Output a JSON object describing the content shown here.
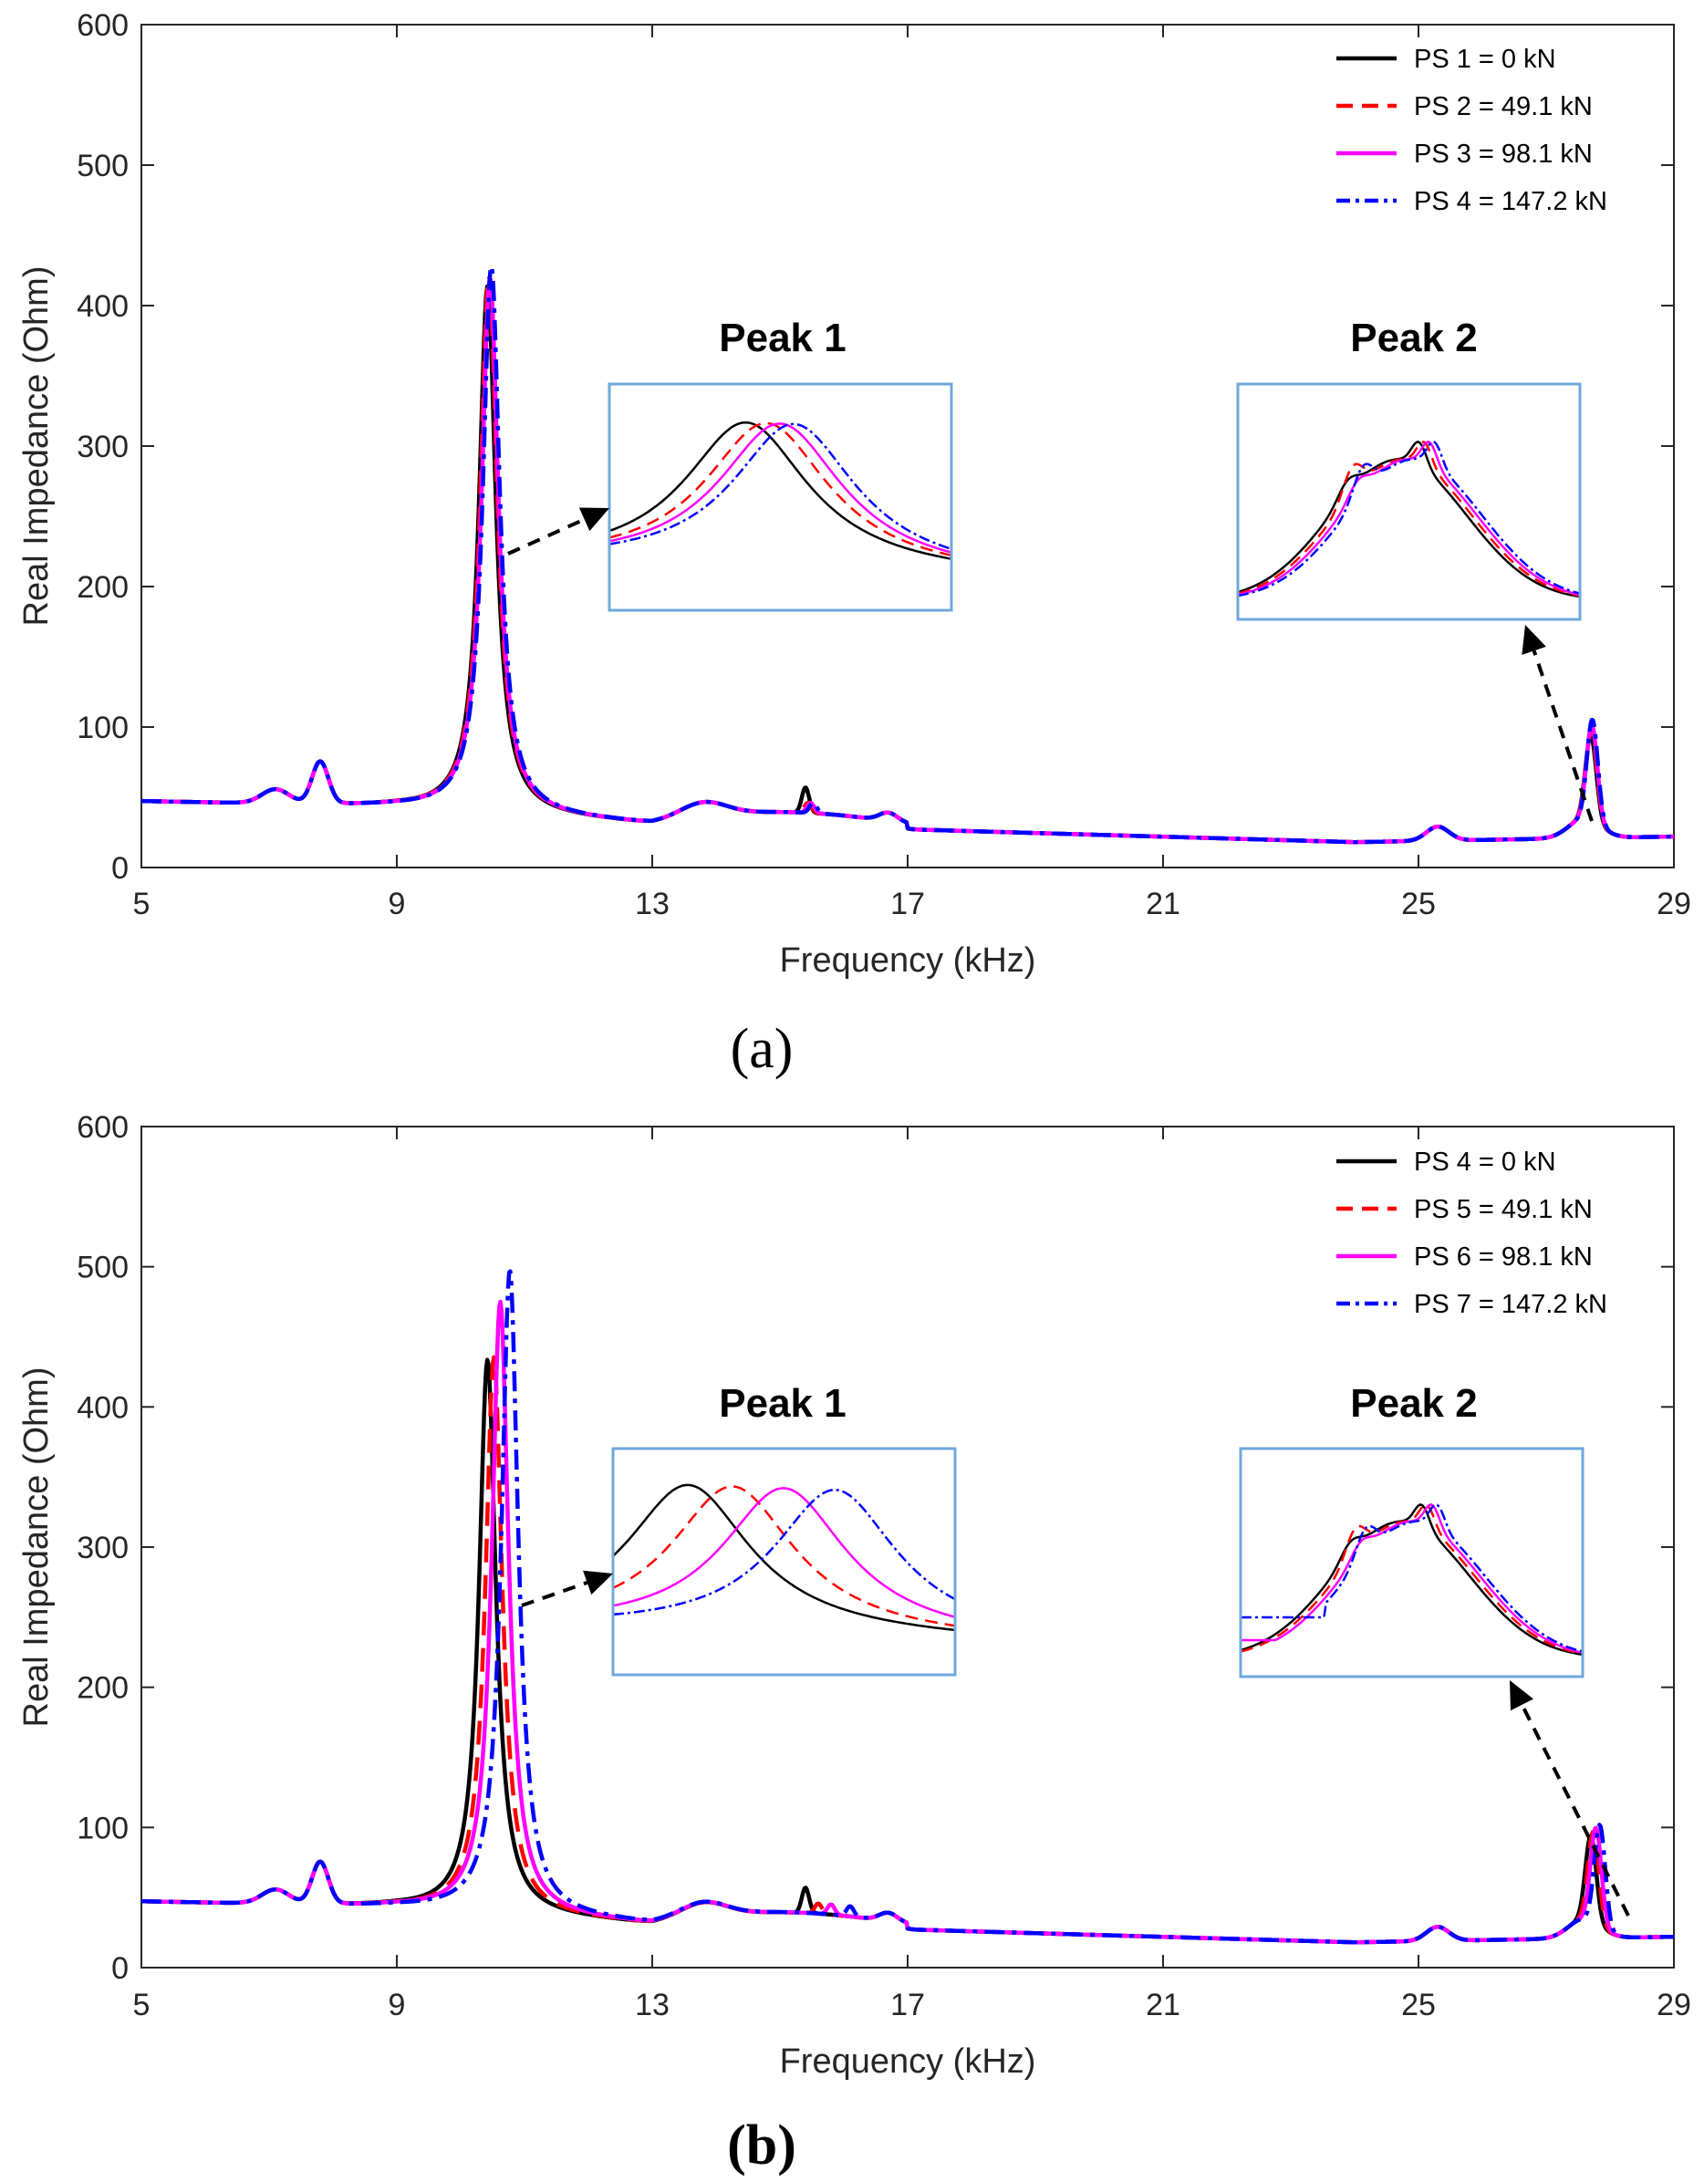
{
  "figure": {
    "panels": [
      "a",
      "b"
    ]
  },
  "chart_data": [
    {
      "type": "line",
      "panel_label": "(a)",
      "xlabel": "Frequency (kHz)",
      "ylabel": "Real Impedance (Ohm)",
      "xlim": [
        5,
        29
      ],
      "ylim": [
        0,
        600
      ],
      "xticks": [
        5,
        9,
        13,
        17,
        21,
        25,
        29
      ],
      "yticks": [
        0,
        100,
        200,
        300,
        400,
        500,
        600
      ],
      "legend_position": "top-right",
      "legend": [
        "PS 1 = 0 kN",
        "PS 2 = 49.1 kN",
        "PS 3 = 98.1 kN",
        "PS 4 = 147.2 kN"
      ],
      "styles": [
        {
          "color": "#000000",
          "dash": ""
        },
        {
          "color": "#ff0000",
          "dash": "26,14"
        },
        {
          "color": "#ff00ff",
          "dash": ""
        },
        {
          "color": "#0000ff",
          "dash": "22,8,5,8"
        }
      ],
      "peak_shifts_khz": [
        0,
        0.02,
        0.04,
        0.06
      ],
      "peak_heights": [
        420,
        428,
        426,
        435
      ],
      "insets": [
        {
          "title": "Peak 1",
          "series_peak_x": [
            0.4,
            0.46,
            0.5,
            0.54
          ]
        },
        {
          "title": "Peak 2"
        }
      ]
    },
    {
      "type": "line",
      "panel_label": "(b)",
      "xlabel": "Frequency (kHz)",
      "ylabel": "Real Impedance (Ohm)",
      "xlim": [
        5,
        29
      ],
      "ylim": [
        0,
        600
      ],
      "xticks": [
        5,
        9,
        13,
        17,
        21,
        25,
        29
      ],
      "yticks": [
        0,
        100,
        200,
        300,
        400,
        500,
        600
      ],
      "legend_position": "top-right",
      "legend": [
        "PS 4 = 0 kN",
        "PS 5 = 49.1 kN",
        "PS 6 = 98.1 kN",
        "PS 7 = 147.2 kN"
      ],
      "styles": [
        {
          "color": "#000000",
          "dash": ""
        },
        {
          "color": "#ff0000",
          "dash": "26,14"
        },
        {
          "color": "#ff00ff",
          "dash": ""
        },
        {
          "color": "#0000ff",
          "dash": "22,8,5,8"
        }
      ],
      "peak_shifts_khz": [
        0,
        0.1,
        0.2,
        0.35
      ],
      "peak_heights": [
        440,
        442,
        482,
        505
      ],
      "insets": [
        {
          "title": "Peak 1",
          "series_peak_x": [
            0.22,
            0.35,
            0.5,
            0.65
          ]
        },
        {
          "title": "Peak 2"
        }
      ]
    }
  ]
}
